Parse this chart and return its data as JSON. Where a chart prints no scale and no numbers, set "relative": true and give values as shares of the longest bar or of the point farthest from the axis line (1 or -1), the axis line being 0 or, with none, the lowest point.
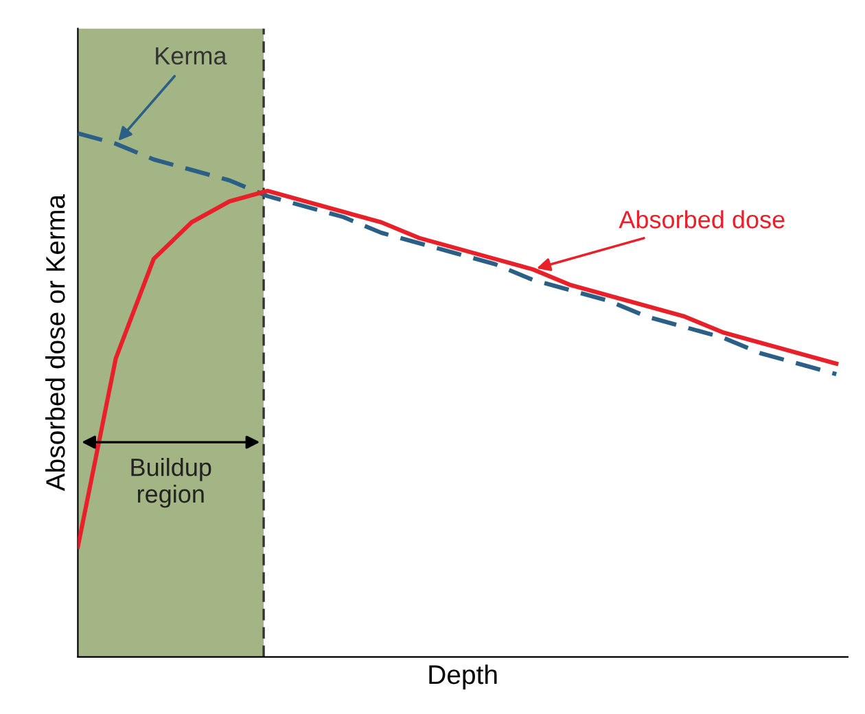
{
  "chart_data": {
    "type": "line",
    "relative": true,
    "xlabel": "Depth",
    "ylabel": "Absorbed dose or Kerma",
    "categories": [
      null,
      null,
      null,
      null,
      null,
      null,
      null,
      null,
      null,
      null,
      null,
      null,
      null,
      null,
      null,
      null,
      null,
      null,
      null,
      null,
      null
    ],
    "series": [
      {
        "name": "Kerma",
        "color": "#2c5f86",
        "line_style": "dashed",
        "values": [
          1.0,
          0.98,
          0.95,
          0.93,
          0.91,
          0.88,
          0.86,
          0.84,
          0.81,
          0.79,
          0.77,
          0.75,
          0.72,
          0.7,
          0.68,
          0.65,
          0.63,
          0.61,
          0.58,
          0.56,
          0.54
        ]
      },
      {
        "name": "Absorbed dose",
        "color": "#e8202a",
        "line_style": "solid",
        "values": [
          0.21,
          0.57,
          0.76,
          0.83,
          0.87,
          0.89,
          0.87,
          0.85,
          0.83,
          0.8,
          0.78,
          0.76,
          0.74,
          0.71,
          0.69,
          0.67,
          0.65,
          0.62,
          0.6,
          0.58,
          0.56
        ]
      }
    ],
    "annotations": [
      "Buildup\nregion"
    ],
    "legend": false,
    "tick_labels": false,
    "marker": "none"
  }
}
